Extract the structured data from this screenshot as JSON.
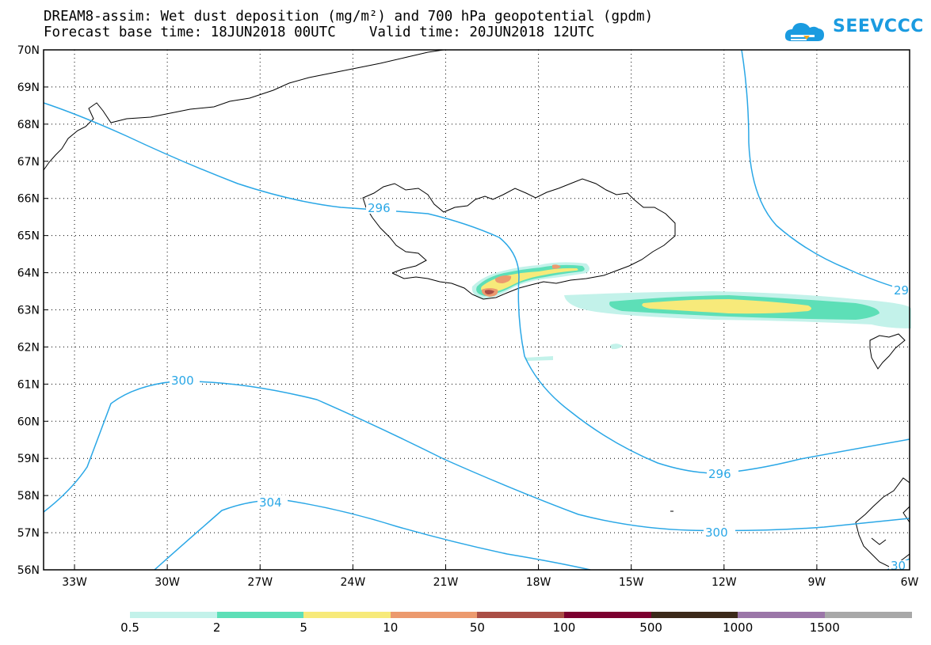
{
  "title": {
    "line1": "DREAM8-assim: Wet dust deposition (mg/m²) and 700 hPa geopotential (gpdm)",
    "line2": "Forecast base time: 18JUN2018 00UTC    Valid time: 20JUN2018 12UTC"
  },
  "logo": {
    "text": "SEEVCCC",
    "icon": "cloud-logo-icon"
  },
  "map": {
    "lon_range": [
      -34.0,
      -6.0
    ],
    "lat_range": [
      56.0,
      70.0
    ],
    "lat_labels": [
      "70N",
      "69N",
      "68N",
      "67N",
      "66N",
      "65N",
      "64N",
      "63N",
      "62N",
      "61N",
      "60N",
      "59N",
      "58N",
      "57N",
      "56N"
    ],
    "lon_labels": [
      "33W",
      "30W",
      "27W",
      "24W",
      "21W",
      "18W",
      "15W",
      "12W",
      "9W",
      "6W"
    ],
    "grid": true
  },
  "contours": {
    "color": "#2aa7e6",
    "labels": [
      "296",
      "300",
      "304",
      "296",
      "300",
      "29",
      "30"
    ]
  },
  "colorbar": {
    "labels": [
      "0.5",
      "2",
      "5",
      "10",
      "50",
      "100",
      "500",
      "1000",
      "1500"
    ],
    "colors": [
      "#c3f2ea",
      "#5ddfb7",
      "#f7ea7a",
      "#ec9a6e",
      "#aa4e46",
      "#7c0030",
      "#3c2a1a",
      "#9b76a8",
      "#a8a8a8"
    ]
  }
}
